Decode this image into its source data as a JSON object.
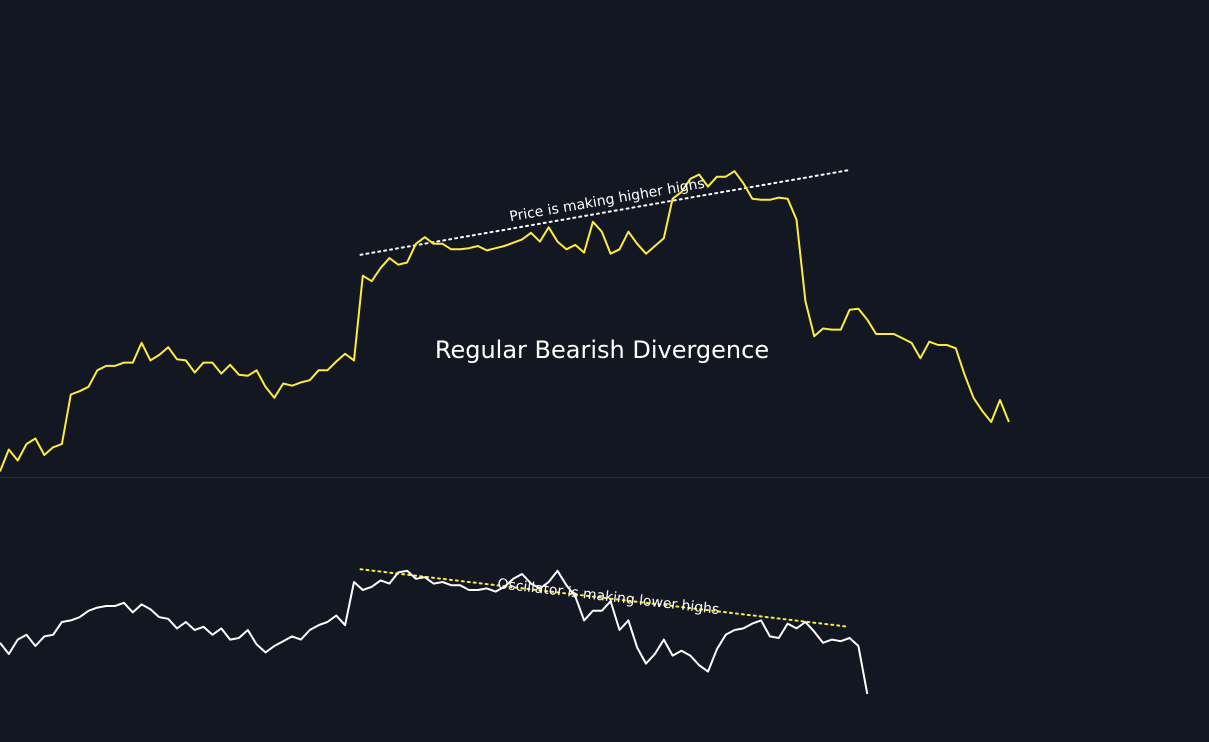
{
  "chart_data": [
    {
      "type": "line",
      "panel": "price",
      "title": "Regular Bearish Divergence",
      "series": [
        {
          "color": "#ffeb3b",
          "values": [
            5,
            25,
            15,
            30,
            35,
            20,
            27,
            30,
            75,
            78,
            82,
            97,
            101,
            101,
            104,
            104,
            122,
            106,
            111,
            118,
            107,
            106,
            95,
            104,
            104,
            94,
            102,
            93,
            92,
            97,
            82,
            72,
            85,
            83,
            86,
            88,
            97,
            97,
            105,
            112,
            106,
            183,
            178,
            190,
            199,
            193,
            195,
            212,
            218,
            212,
            212,
            207,
            207,
            208,
            210,
            206,
            208,
            210,
            213,
            216,
            222,
            214,
            227,
            214,
            207,
            211,
            204,
            232,
            223,
            203,
            207,
            223,
            212,
            203,
            210,
            217,
            253,
            259,
            271,
            275,
            264,
            273,
            273,
            278,
            267,
            253,
            252,
            252,
            254,
            253,
            234,
            160,
            128,
            135,
            134,
            134,
            152,
            153,
            143,
            130,
            130,
            130,
            126,
            122,
            108,
            123,
            120,
            120,
            117,
            93,
            72,
            60,
            50,
            70,
            50
          ]
        }
      ],
      "annotations": [
        {
          "text": "Price is making higher highs",
          "line_color": "#ffffff",
          "from": [
            30,
            202
          ],
          "to": [
            86,
            279
          ]
        }
      ]
    },
    {
      "type": "line",
      "panel": "oscillator",
      "series": [
        {
          "color": "#ffffff",
          "values": [
            62,
            55,
            64,
            67,
            60,
            66,
            67,
            75,
            76,
            78,
            82,
            84,
            85,
            85,
            87,
            81,
            86,
            83,
            78,
            77,
            71,
            75,
            70,
            72,
            67,
            71,
            64,
            65,
            70,
            61,
            56,
            60,
            63,
            66,
            64,
            70,
            73,
            75,
            79,
            73,
            100,
            95,
            97,
            101,
            99,
            106,
            107,
            102,
            103,
            99,
            100,
            98,
            98,
            95,
            95,
            96,
            94,
            97,
            102,
            105,
            99,
            96,
            100,
            107,
            98,
            91,
            76,
            82,
            82,
            88,
            70,
            76,
            59,
            49,
            55,
            64,
            54,
            57,
            54,
            48,
            44,
            58,
            67,
            70,
            71,
            74,
            76,
            66,
            65,
            74,
            71,
            75,
            69,
            62,
            64,
            63,
            65,
            60,
            30
          ]
        }
      ],
      "annotations": [
        {
          "text": "Oscillator is making lower highs",
          "line_color": "#ffeb3b",
          "from": [
            30,
            108
          ],
          "to": [
            86,
            72
          ]
        }
      ]
    }
  ]
}
